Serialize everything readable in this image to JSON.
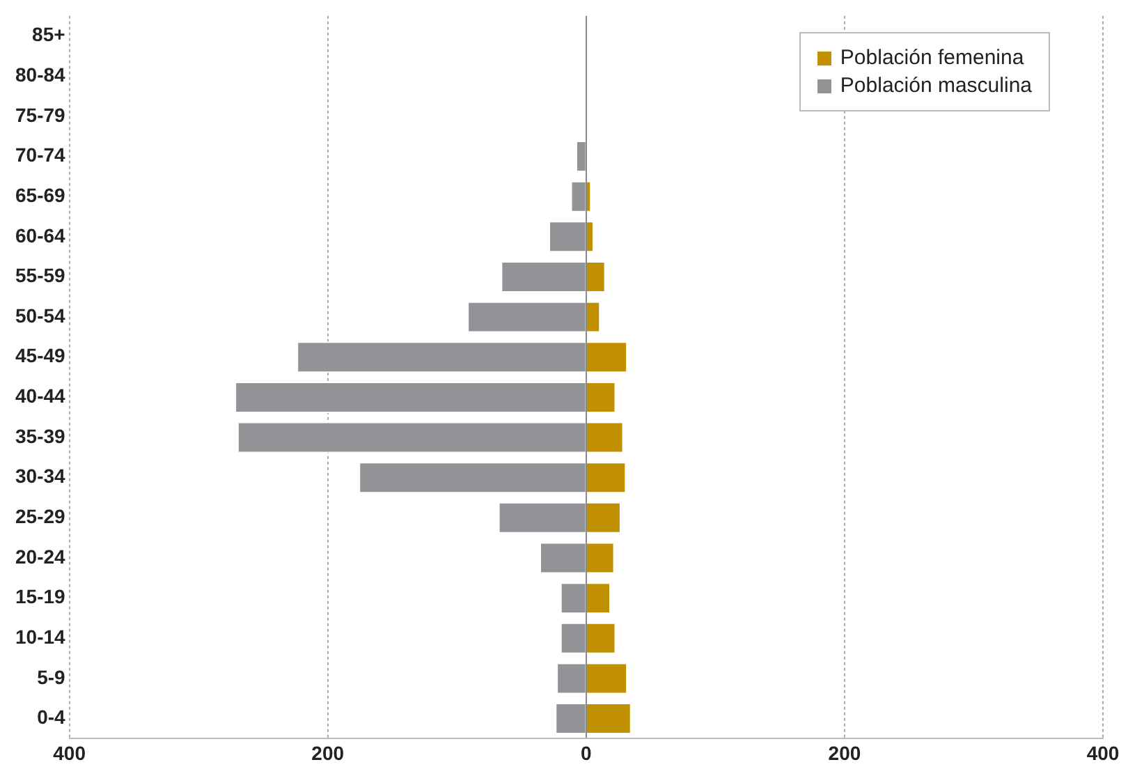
{
  "chart_data": {
    "type": "bar",
    "orientation": "horizontal",
    "stacked": true,
    "categories": [
      "85+",
      "80-84",
      "75-79",
      "70-74",
      "65-69",
      "60-64",
      "55-59",
      "50-54",
      "45-49",
      "40-44",
      "35-39",
      "30-34",
      "25-29",
      "20-24",
      "15-19",
      "10-14",
      "5-9",
      "0-4"
    ],
    "series": [
      {
        "name": "Población femenina",
        "color": "#c09000",
        "values": [
          0,
          0,
          0,
          null,
          4,
          6,
          15,
          11,
          32,
          23,
          29,
          31,
          27,
          22,
          19,
          23,
          32,
          35
        ]
      },
      {
        "name": "Población masculina",
        "color": "#929396",
        "values": [
          0,
          0,
          0,
          -8,
          -12,
          -29,
          -66,
          -92,
          -224,
          -272,
          -270,
          -176,
          -68,
          -36,
          -20,
          -20,
          -23,
          -24
        ]
      }
    ],
    "xlim": [
      -400,
      400
    ],
    "xticks": [
      {
        "value": -400,
        "label": "400"
      },
      {
        "value": -200,
        "label": "200"
      },
      0,
      200,
      400
    ],
    "grid": "x",
    "legend": "top right"
  }
}
